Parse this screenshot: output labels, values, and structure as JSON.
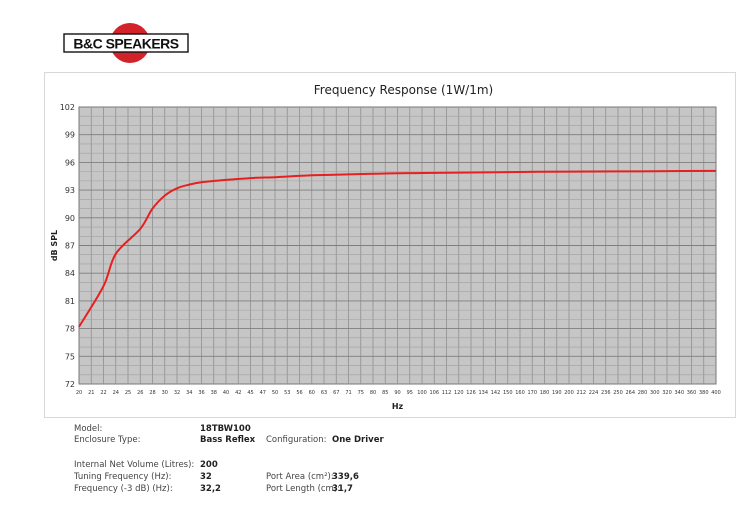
{
  "logo": {
    "text": "B&C SPEAKERS"
  },
  "chart_data": {
    "type": "line",
    "title": "Frequency Response (1W/1m)",
    "xlabel": "Hz",
    "ylabel": "dB SPL",
    "ylim": [
      72,
      102
    ],
    "yticks": [
      72,
      75,
      78,
      81,
      84,
      87,
      90,
      93,
      96,
      99,
      102
    ],
    "xticks": [
      "20",
      "21",
      "22",
      "24",
      "25",
      "26",
      "28",
      "30",
      "32",
      "34",
      "36",
      "38",
      "40",
      "42",
      "45",
      "47",
      "50",
      "53",
      "56",
      "60",
      "63",
      "67",
      "71",
      "75",
      "80",
      "85",
      "90",
      "95",
      "100",
      "106",
      "112",
      "120",
      "126",
      "134",
      "142",
      "150",
      "160",
      "170",
      "180",
      "190",
      "200",
      "212",
      "224",
      "236",
      "250",
      "264",
      "280",
      "300",
      "320",
      "340",
      "360",
      "380",
      "400"
    ],
    "grid": true,
    "series": [
      {
        "color": "#e62020",
        "x": [
          20,
          22,
          24,
          26,
          28,
          30,
          32,
          34,
          36,
          40,
          45,
          50,
          60,
          71,
          85,
          100,
          120,
          150,
          200,
          250,
          300,
          400
        ],
        "y": [
          78.2,
          82.6,
          86.1,
          88.8,
          91.0,
          92.4,
          93.2,
          93.6,
          93.85,
          94.1,
          94.3,
          94.4,
          94.6,
          94.7,
          94.8,
          94.85,
          94.9,
          94.95,
          95.0,
          95.02,
          95.05,
          95.08
        ]
      }
    ]
  },
  "specs": {
    "model_label": "Model:",
    "model_value": "18TBW100",
    "enclosure_label": "Enclosure Type:",
    "enclosure_value": "Bass Reflex",
    "config_label": "Configuration:",
    "config_value": "One Driver",
    "volume_label": "Internal Net Volume (Litres):",
    "volume_value": "200",
    "tuning_label": "Tuning Frequency (Hz):",
    "tuning_value": "32",
    "port_area_label": "Port Area (cm²):",
    "port_area_value": "339,6",
    "freq3_label": "Frequency (-3 dB) (Hz):",
    "freq3_value": "32,2",
    "port_length_label": "Port Length (cm):",
    "port_length_value": "31,7"
  }
}
